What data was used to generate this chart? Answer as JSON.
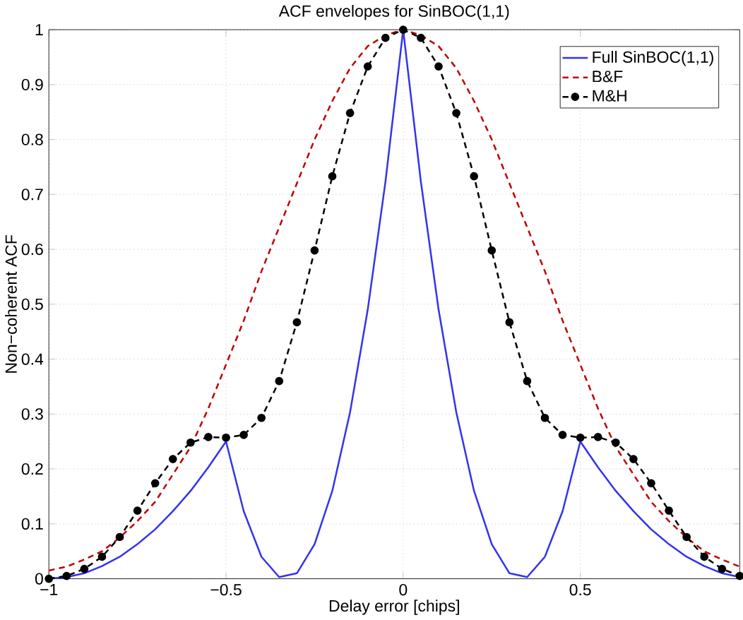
{
  "chart_data": {
    "type": "line",
    "title": "ACF envelopes for SinBOC(1,1)",
    "xlabel": "Delay error [chips]",
    "ylabel": "Non−coherent ACF",
    "x": [
      -1,
      -0.95,
      -0.9,
      -0.85,
      -0.8,
      -0.75,
      -0.7,
      -0.65,
      -0.6,
      -0.55,
      -0.5,
      -0.45,
      -0.4,
      -0.35,
      -0.3,
      -0.25,
      -0.2,
      -0.15,
      -0.1,
      -0.05,
      0,
      0.05,
      0.1,
      0.15,
      0.2,
      0.25,
      0.3,
      0.35,
      0.4,
      0.45,
      0.5,
      0.55,
      0.6,
      0.65,
      0.7,
      0.75,
      0.8,
      0.85,
      0.9,
      0.95
    ],
    "series": [
      {
        "name": "Full SinBOC(1,1)",
        "color": "#3333ee",
        "line_style": "solid",
        "marker": "none",
        "values": [
          0,
          0.003,
          0.01,
          0.023,
          0.04,
          0.063,
          0.09,
          0.123,
          0.16,
          0.203,
          0.25,
          0.123,
          0.04,
          0.003,
          0.01,
          0.063,
          0.16,
          0.303,
          0.49,
          0.723,
          1,
          0.723,
          0.49,
          0.303,
          0.16,
          0.063,
          0.01,
          0.003,
          0.04,
          0.123,
          0.25,
          0.203,
          0.16,
          0.123,
          0.09,
          0.063,
          0.04,
          0.023,
          0.01,
          0.003
        ]
      },
      {
        "name": "B&F",
        "color": "#c00000",
        "line_style": "dashed",
        "marker": "none",
        "values": [
          0.015,
          0.022,
          0.035,
          0.05,
          0.075,
          0.105,
          0.14,
          0.19,
          0.24,
          0.31,
          0.39,
          0.47,
          0.56,
          0.64,
          0.72,
          0.8,
          0.87,
          0.93,
          0.97,
          0.99,
          1,
          0.99,
          0.97,
          0.93,
          0.87,
          0.8,
          0.72,
          0.64,
          0.56,
          0.47,
          0.39,
          0.31,
          0.24,
          0.19,
          0.14,
          0.105,
          0.075,
          0.05,
          0.035,
          0.022
        ]
      },
      {
        "name": "M&H",
        "color": "#000000",
        "line_style": "dashed",
        "marker": "circle",
        "values": [
          0,
          0.005,
          0.018,
          0.04,
          0.076,
          0.124,
          0.174,
          0.218,
          0.248,
          0.258,
          0.257,
          0.262,
          0.293,
          0.36,
          0.467,
          0.598,
          0.733,
          0.848,
          0.933,
          0.985,
          1,
          0.985,
          0.933,
          0.848,
          0.733,
          0.598,
          0.467,
          0.36,
          0.293,
          0.262,
          0.257,
          0.258,
          0.248,
          0.218,
          0.174,
          0.124,
          0.076,
          0.04,
          0.018,
          0.005
        ]
      }
    ],
    "xlim": [
      -1,
      0.95
    ],
    "ylim": [
      0,
      1
    ],
    "xticks": [
      {
        "value": -1,
        "label": "−1"
      },
      {
        "value": -0.5,
        "label": "−0.5"
      },
      0,
      0.5
    ],
    "yticks": [
      0,
      0.1,
      0.2,
      0.3,
      0.4,
      0.5,
      0.6,
      0.7,
      0.8,
      0.9,
      1
    ],
    "grid": true,
    "legend": "top right"
  }
}
